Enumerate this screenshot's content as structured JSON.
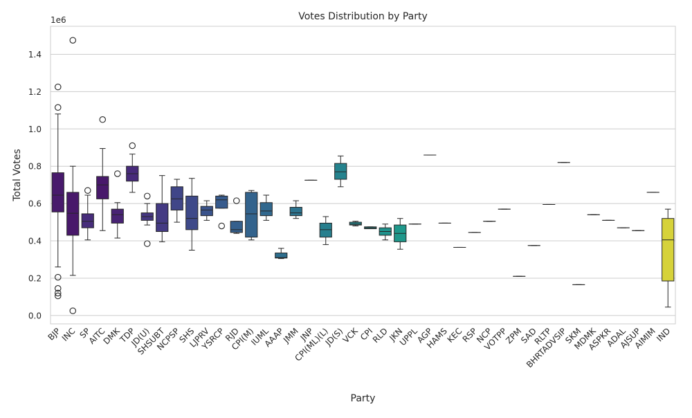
{
  "chart_data": {
    "type": "box",
    "title": "Votes Distribution by Party",
    "xlabel": "Party",
    "ylabel": "Total Votes",
    "y_offset_label": "1e6",
    "ylim": [
      -0.045,
      1.55
    ],
    "yticks": [
      0.0,
      0.2,
      0.4,
      0.6,
      0.8,
      1.0,
      1.2,
      1.4
    ],
    "ytick_labels": [
      "0.0",
      "0.2",
      "0.4",
      "0.6",
      "0.8",
      "1.0",
      "1.2",
      "1.4"
    ],
    "grid": true,
    "categories": [
      "BJP",
      "INC",
      "SP",
      "AITC",
      "DMK",
      "TDP",
      "JD(U)",
      "SHSUBT",
      "NCPSP",
      "SHS",
      "LJPRV",
      "YSRCP",
      "RJD",
      "CPI(M)",
      "IUML",
      "AAAP",
      "JMM",
      "JNP",
      "CPI(ML)(L)",
      "JD(S)",
      "VCK",
      "CPI",
      "RLD",
      "JKN",
      "UPPL",
      "AGP",
      "HAMS",
      "KEC",
      "RSP",
      "NCP",
      "VOTPP",
      "ZPM",
      "SAD",
      "RLTP",
      "BHRTADVSIP",
      "SKM",
      "MDMK",
      "ASPKR",
      "ADAL",
      "AJSUP",
      "AIMIM",
      "IND"
    ],
    "boxes": [
      {
        "party": "BJP",
        "color": "#481a6c",
        "whislo": 0.26,
        "q1": 0.555,
        "med": 0.645,
        "q3": 0.765,
        "whishi": 1.08,
        "fliers": [
          1.225,
          1.115,
          0.205,
          0.145,
          0.12,
          0.105
        ]
      },
      {
        "party": "INC",
        "color": "#48186a",
        "whislo": 0.215,
        "q1": 0.43,
        "med": 0.548,
        "q3": 0.66,
        "whishi": 0.8,
        "fliers": [
          1.475,
          0.025
        ]
      },
      {
        "party": "SP",
        "color": "#472d7b",
        "whislo": 0.405,
        "q1": 0.47,
        "med": 0.505,
        "q3": 0.545,
        "whishi": 0.645,
        "fliers": [
          0.67
        ]
      },
      {
        "party": "AITC",
        "color": "#48196b",
        "whislo": 0.455,
        "q1": 0.625,
        "med": 0.7,
        "q3": 0.745,
        "whishi": 0.895,
        "fliers": [
          1.05
        ]
      },
      {
        "party": "DMK",
        "color": "#482374",
        "whislo": 0.415,
        "q1": 0.495,
        "med": 0.54,
        "q3": 0.57,
        "whishi": 0.605,
        "fliers": [
          0.76
        ]
      },
      {
        "party": "TDP",
        "color": "#472a7a",
        "whislo": 0.66,
        "q1": 0.72,
        "med": 0.76,
        "q3": 0.8,
        "whishi": 0.865,
        "fliers": [
          0.91
        ]
      },
      {
        "party": "JD(U)",
        "color": "#453781",
        "whislo": 0.485,
        "q1": 0.51,
        "med": 0.53,
        "q3": 0.55,
        "whishi": 0.6,
        "fliers": [
          0.64,
          0.385
        ]
      },
      {
        "party": "SHSUBT",
        "color": "#443a83",
        "whislo": 0.395,
        "q1": 0.45,
        "med": 0.495,
        "q3": 0.6,
        "whishi": 0.75,
        "fliers": []
      },
      {
        "party": "NCPSP",
        "color": "#404688",
        "whislo": 0.5,
        "q1": 0.565,
        "med": 0.625,
        "q3": 0.69,
        "whishi": 0.73,
        "fliers": []
      },
      {
        "party": "SHS",
        "color": "#3e4989",
        "whislo": 0.35,
        "q1": 0.46,
        "med": 0.52,
        "q3": 0.64,
        "whishi": 0.735,
        "fliers": []
      },
      {
        "party": "LJPRV",
        "color": "#3a538b",
        "whislo": 0.51,
        "q1": 0.535,
        "med": 0.565,
        "q3": 0.585,
        "whishi": 0.615,
        "fliers": []
      },
      {
        "party": "YSRCP",
        "color": "#375b8d",
        "whislo": 0.575,
        "q1": 0.575,
        "med": 0.62,
        "q3": 0.64,
        "whishi": 0.645,
        "fliers": [
          0.48
        ]
      },
      {
        "party": "RJD",
        "color": "#35608d",
        "whislo": 0.44,
        "q1": 0.445,
        "med": 0.46,
        "q3": 0.505,
        "whishi": 0.505,
        "fliers": [
          0.615
        ]
      },
      {
        "party": "CPI(M)",
        "color": "#33638d",
        "whislo": 0.405,
        "q1": 0.42,
        "med": 0.545,
        "q3": 0.66,
        "whishi": 0.67,
        "fliers": []
      },
      {
        "party": "IUML",
        "color": "#31688e",
        "whislo": 0.51,
        "q1": 0.535,
        "med": 0.56,
        "q3": 0.605,
        "whishi": 0.645,
        "fliers": []
      },
      {
        "party": "AAAP",
        "color": "#2e6e8e",
        "whislo": 0.305,
        "q1": 0.308,
        "med": 0.31,
        "q3": 0.335,
        "whishi": 0.36,
        "fliers": []
      },
      {
        "party": "JMM",
        "color": "#2c738e",
        "whislo": 0.52,
        "q1": 0.535,
        "med": 0.55,
        "q3": 0.58,
        "whishi": 0.615,
        "fliers": []
      },
      {
        "party": "JNP",
        "color": "#2a788e",
        "whislo": 0.725,
        "q1": 0.725,
        "med": 0.725,
        "q3": 0.725,
        "whishi": 0.725,
        "fliers": []
      },
      {
        "party": "CPI(ML)(L)",
        "color": "#277f8e",
        "whislo": 0.38,
        "q1": 0.42,
        "med": 0.46,
        "q3": 0.495,
        "whishi": 0.53,
        "fliers": []
      },
      {
        "party": "JD(S)",
        "color": "#25838e",
        "whislo": 0.69,
        "q1": 0.73,
        "med": 0.77,
        "q3": 0.815,
        "whishi": 0.855,
        "fliers": []
      },
      {
        "party": "VCK",
        "color": "#23898e",
        "whislo": 0.48,
        "q1": 0.485,
        "med": 0.49,
        "q3": 0.5,
        "whishi": 0.505,
        "fliers": []
      },
      {
        "party": "CPI",
        "color": "#218e8d",
        "whislo": 0.465,
        "q1": 0.465,
        "med": 0.47,
        "q3": 0.475,
        "whishi": 0.475,
        "fliers": []
      },
      {
        "party": "RLD",
        "color": "#20928c",
        "whislo": 0.405,
        "q1": 0.43,
        "med": 0.45,
        "q3": 0.47,
        "whishi": 0.49,
        "fliers": []
      },
      {
        "party": "JKN",
        "color": "#1f988b",
        "whislo": 0.355,
        "q1": 0.395,
        "med": 0.44,
        "q3": 0.485,
        "whishi": 0.52,
        "fliers": []
      },
      {
        "party": "UPPL",
        "color": "#1f9e89",
        "whislo": 0.49,
        "q1": 0.49,
        "med": 0.49,
        "q3": 0.49,
        "whishi": 0.49,
        "fliers": []
      },
      {
        "party": "AGP",
        "color": "#22a785",
        "whislo": 0.86,
        "q1": 0.86,
        "med": 0.86,
        "q3": 0.86,
        "whishi": 0.86,
        "fliers": []
      },
      {
        "party": "HAMS",
        "color": "#27ad81",
        "whislo": 0.495,
        "q1": 0.495,
        "med": 0.495,
        "q3": 0.495,
        "whishi": 0.495,
        "fliers": []
      },
      {
        "party": "KEC",
        "color": "#2eb37c",
        "whislo": 0.365,
        "q1": 0.365,
        "med": 0.365,
        "q3": 0.365,
        "whishi": 0.365,
        "fliers": []
      },
      {
        "party": "RSP",
        "color": "#35b779",
        "whislo": 0.445,
        "q1": 0.445,
        "med": 0.445,
        "q3": 0.445,
        "whishi": 0.445,
        "fliers": []
      },
      {
        "party": "NCP",
        "color": "#40bd72",
        "whislo": 0.505,
        "q1": 0.505,
        "med": 0.505,
        "q3": 0.505,
        "whishi": 0.505,
        "fliers": []
      },
      {
        "party": "VOTPP",
        "color": "#4ac16d",
        "whislo": 0.57,
        "q1": 0.57,
        "med": 0.57,
        "q3": 0.57,
        "whishi": 0.57,
        "fliers": []
      },
      {
        "party": "ZPM",
        "color": "#56c667",
        "whislo": 0.21,
        "q1": 0.21,
        "med": 0.21,
        "q3": 0.21,
        "whishi": 0.21,
        "fliers": []
      },
      {
        "party": "SAD",
        "color": "#65cb5e",
        "whislo": 0.375,
        "q1": 0.375,
        "med": 0.375,
        "q3": 0.375,
        "whishi": 0.375,
        "fliers": []
      },
      {
        "party": "RLTP",
        "color": "#73d056",
        "whislo": 0.595,
        "q1": 0.595,
        "med": 0.595,
        "q3": 0.595,
        "whishi": 0.595,
        "fliers": []
      },
      {
        "party": "BHRTADVSIP",
        "color": "#81d34d",
        "whislo": 0.82,
        "q1": 0.82,
        "med": 0.82,
        "q3": 0.82,
        "whishi": 0.82,
        "fliers": []
      },
      {
        "party": "SKM",
        "color": "#90d743",
        "whislo": 0.165,
        "q1": 0.165,
        "med": 0.165,
        "q3": 0.165,
        "whishi": 0.165,
        "fliers": []
      },
      {
        "party": "MDMK",
        "color": "#a0da39",
        "whislo": 0.54,
        "q1": 0.54,
        "med": 0.54,
        "q3": 0.54,
        "whishi": 0.54,
        "fliers": []
      },
      {
        "party": "ASPKR",
        "color": "#b0dd2f",
        "whislo": 0.51,
        "q1": 0.51,
        "med": 0.51,
        "q3": 0.51,
        "whishi": 0.51,
        "fliers": []
      },
      {
        "party": "ADAL",
        "color": "#c0df25",
        "whislo": 0.47,
        "q1": 0.47,
        "med": 0.47,
        "q3": 0.47,
        "whishi": 0.47,
        "fliers": []
      },
      {
        "party": "AJSUP",
        "color": "#d0e11c",
        "whislo": 0.455,
        "q1": 0.455,
        "med": 0.455,
        "q3": 0.455,
        "whishi": 0.455,
        "fliers": []
      },
      {
        "party": "AIMIM",
        "color": "#e2e418",
        "whislo": 0.66,
        "q1": 0.66,
        "med": 0.66,
        "q3": 0.66,
        "whishi": 0.66,
        "fliers": []
      },
      {
        "party": "IND",
        "color": "#d6d23a",
        "whislo": 0.045,
        "q1": 0.185,
        "med": 0.405,
        "q3": 0.52,
        "whishi": 0.57,
        "fliers": []
      }
    ]
  }
}
